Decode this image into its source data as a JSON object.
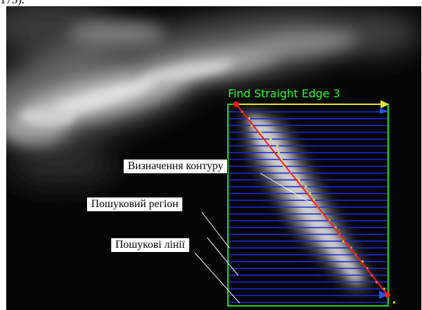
{
  "caption_top": "175).",
  "roi": {
    "title": "Find Straight Edge 3",
    "search_line_count": 29,
    "colors": {
      "roi_border": "#22dd22",
      "search_lines": "#1a2ad8",
      "fitted_edge": "#ff1a1a",
      "edge_points": "#e8e82a",
      "direction_arrow": "#e8e82a",
      "direction_marker": "#2255ff"
    }
  },
  "annotations": {
    "edge_detection": "Визначення контуру",
    "search_region": "Пошуковий регіон",
    "search_lines": "Пошукові лінії"
  }
}
